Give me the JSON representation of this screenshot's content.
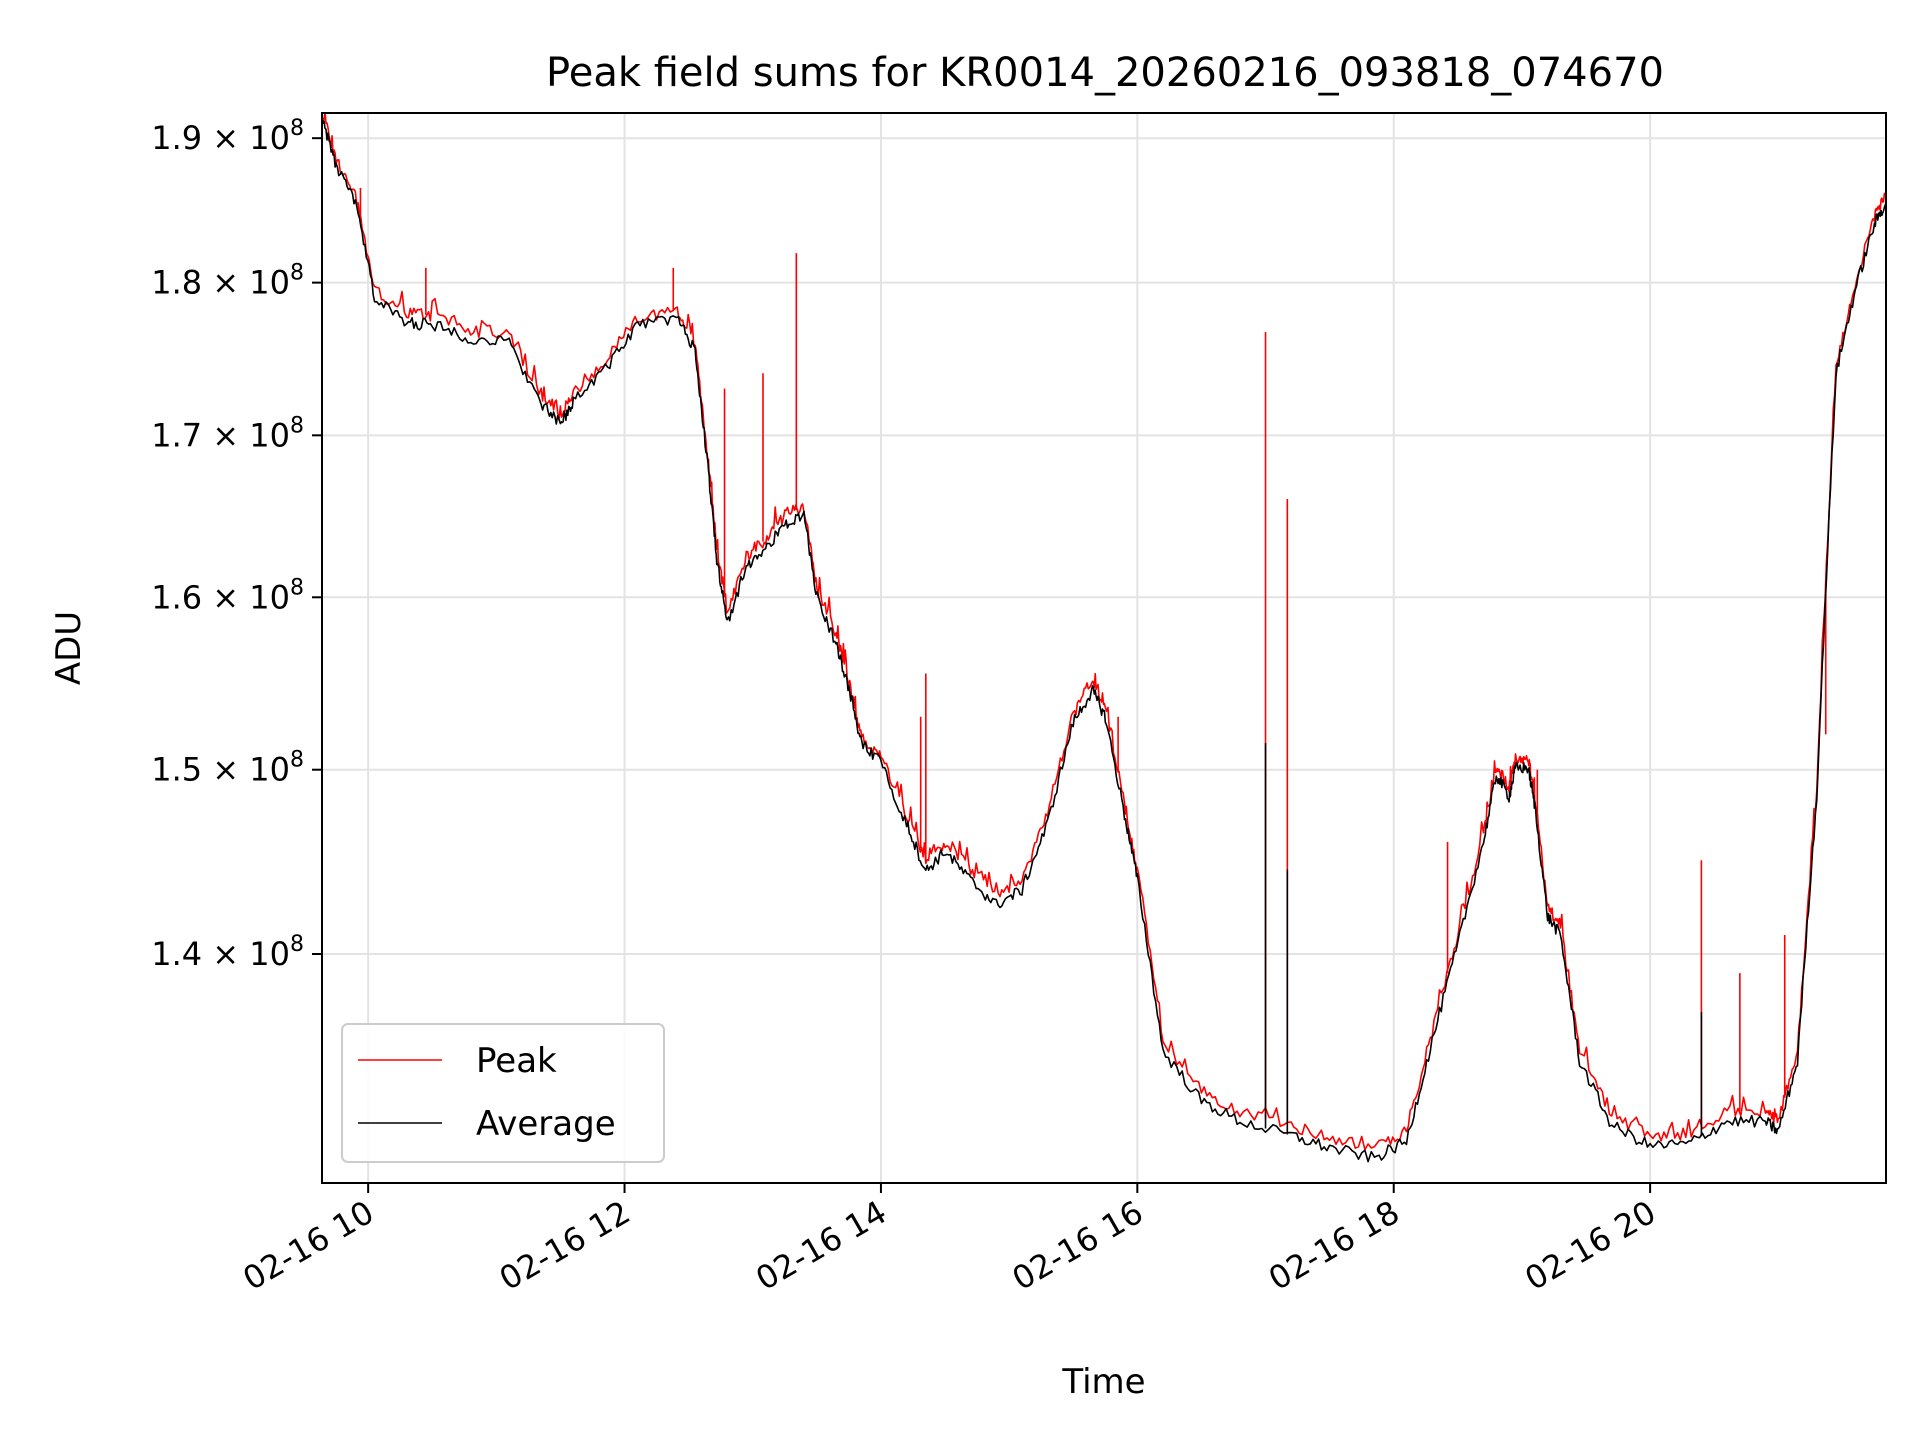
{
  "chart_data": {
    "type": "line",
    "title": "Peak field sums for KR0014_20260216_093818_074670",
    "xlabel": "Time",
    "ylabel": "ADU",
    "yscale": "log",
    "xlim_hours": [
      9.64,
      21.84
    ],
    "ylim": [
      128500000,
      191800000
    ],
    "grid": true,
    "legend_location": "lower-left",
    "x_ticks": [
      {
        "hour": 10,
        "label": "02-16 10"
      },
      {
        "hour": 12,
        "label": "02-16 12"
      },
      {
        "hour": 14,
        "label": "02-16 14"
      },
      {
        "hour": 16,
        "label": "02-16 16"
      },
      {
        "hour": 18,
        "label": "02-16 18"
      },
      {
        "hour": 20,
        "label": "02-16 20"
      }
    ],
    "y_ticks": [
      {
        "value": 140000000,
        "mantissa": "1.4",
        "base": "10",
        "exp": "8"
      },
      {
        "value": 150000000,
        "mantissa": "1.5",
        "base": "10",
        "exp": "8"
      },
      {
        "value": 160000000,
        "mantissa": "1.6",
        "base": "10",
        "exp": "8"
      },
      {
        "value": 170000000,
        "mantissa": "1.7",
        "base": "10",
        "exp": "8"
      },
      {
        "value": 180000000,
        "mantissa": "1.8",
        "base": "10",
        "exp": "8"
      },
      {
        "value": 190000000,
        "mantissa": "1.9",
        "base": "10",
        "exp": "8"
      }
    ],
    "series": [
      {
        "name": "Peak",
        "color": "#ff0000",
        "x": [
          9.64,
          9.75,
          9.9,
          10.05,
          10.3,
          10.5,
          10.8,
          11.1,
          11.35,
          11.5,
          11.6,
          11.85,
          12.1,
          12.4,
          12.55,
          12.65,
          12.72,
          12.8,
          12.95,
          13.1,
          13.25,
          13.4,
          13.5,
          13.65,
          13.75,
          13.85,
          14.0,
          14.2,
          14.35,
          14.5,
          14.7,
          14.9,
          15.1,
          15.3,
          15.5,
          15.65,
          15.75,
          15.9,
          16.0,
          16.2,
          16.5,
          16.8,
          17.2,
          17.5,
          17.85,
          18.1,
          18.3,
          18.5,
          18.7,
          18.8,
          18.9,
          18.95,
          19.05,
          19.1,
          19.2,
          19.3,
          19.45,
          19.7,
          20.0,
          20.3,
          20.6,
          20.9,
          21.0,
          21.15,
          21.3,
          21.45,
          21.6,
          21.75,
          21.84
        ],
        "values": [
          191800000,
          188500000,
          186000000,
          179500000,
          178000000,
          177800000,
          176800000,
          176500000,
          172500000,
          171200000,
          172700000,
          174800000,
          177600000,
          178200000,
          176000000,
          168500000,
          163000000,
          159000000,
          162500000,
          163500000,
          165000000,
          165500000,
          160500000,
          157800000,
          155000000,
          151800000,
          150800000,
          147500000,
          145000000,
          146000000,
          144500000,
          143200000,
          144000000,
          147500000,
          153200000,
          155000000,
          153500000,
          148000000,
          144500000,
          135500000,
          133000000,
          132000000,
          131300000,
          130700000,
          130200000,
          131000000,
          136000000,
          141000000,
          146500000,
          150200000,
          149000000,
          150600000,
          150600000,
          148500000,
          142500000,
          141500000,
          135000000,
          131800000,
          130800000,
          130900000,
          132000000,
          132000000,
          131500000,
          135000000,
          149000000,
          174500000,
          180000000,
          184500000,
          186000000
        ],
        "spikes": [
          {
            "x": 9.94,
            "value": 186500000
          },
          {
            "x": 10.45,
            "value": 181000000
          },
          {
            "x": 12.38,
            "value": 181000000
          },
          {
            "x": 12.78,
            "value": 173000000
          },
          {
            "x": 13.08,
            "value": 174000000
          },
          {
            "x": 13.34,
            "value": 182000000
          },
          {
            "x": 14.35,
            "value": 155500000
          },
          {
            "x": 14.31,
            "value": 153000000
          },
          {
            "x": 15.85,
            "value": 153000000
          },
          {
            "x": 17.0,
            "value": 176700000
          },
          {
            "x": 17.17,
            "value": 166000000
          },
          {
            "x": 18.42,
            "value": 146000000
          },
          {
            "x": 19.12,
            "value": 150000000
          },
          {
            "x": 20.4,
            "value": 145000000
          },
          {
            "x": 20.7,
            "value": 139000000
          },
          {
            "x": 21.05,
            "value": 141000000
          },
          {
            "x": 21.37,
            "value": 152000000
          }
        ]
      },
      {
        "name": "Average",
        "color": "#000000",
        "x": [
          9.64,
          9.75,
          9.9,
          10.05,
          10.3,
          10.5,
          10.8,
          11.1,
          11.35,
          11.5,
          11.6,
          11.85,
          12.1,
          12.4,
          12.55,
          12.65,
          12.72,
          12.8,
          12.95,
          13.1,
          13.25,
          13.4,
          13.5,
          13.65,
          13.75,
          13.85,
          14.0,
          14.2,
          14.35,
          14.5,
          14.7,
          14.9,
          15.1,
          15.3,
          15.5,
          15.65,
          15.75,
          15.9,
          16.0,
          16.2,
          16.5,
          16.8,
          17.2,
          17.5,
          17.85,
          18.1,
          18.3,
          18.5,
          18.7,
          18.8,
          18.9,
          18.95,
          19.05,
          19.1,
          19.2,
          19.3,
          19.45,
          19.7,
          20.0,
          20.3,
          20.6,
          20.9,
          21.0,
          21.15,
          21.3,
          21.45,
          21.6,
          21.75,
          21.84
        ],
        "values": [
          191500000,
          188000000,
          185500000,
          179000000,
          177300000,
          177200000,
          176300000,
          176000000,
          172000000,
          170700000,
          172200000,
          174300000,
          177100000,
          177700000,
          175500000,
          168000000,
          162300000,
          158400000,
          161900000,
          162900000,
          164400000,
          165000000,
          160000000,
          157300000,
          154600000,
          151400000,
          150400000,
          147000000,
          144400000,
          145500000,
          143900000,
          142600000,
          143400000,
          147000000,
          152700000,
          154500000,
          153000000,
          147500000,
          144000000,
          135000000,
          132500000,
          131500000,
          130800000,
          130200000,
          129700000,
          130500000,
          135500000,
          140500000,
          146000000,
          149700000,
          148500000,
          150100000,
          150100000,
          148000000,
          142000000,
          141000000,
          134500000,
          131300000,
          130300000,
          130400000,
          131500000,
          131500000,
          131000000,
          134500000,
          148500000,
          174000000,
          179500000,
          184000000,
          185500000
        ],
        "spikes": [
          {
            "x": 17.0,
            "value": 151500000
          },
          {
            "x": 17.17,
            "value": 144500000
          },
          {
            "x": 20.4,
            "value": 137000000
          }
        ]
      }
    ]
  }
}
